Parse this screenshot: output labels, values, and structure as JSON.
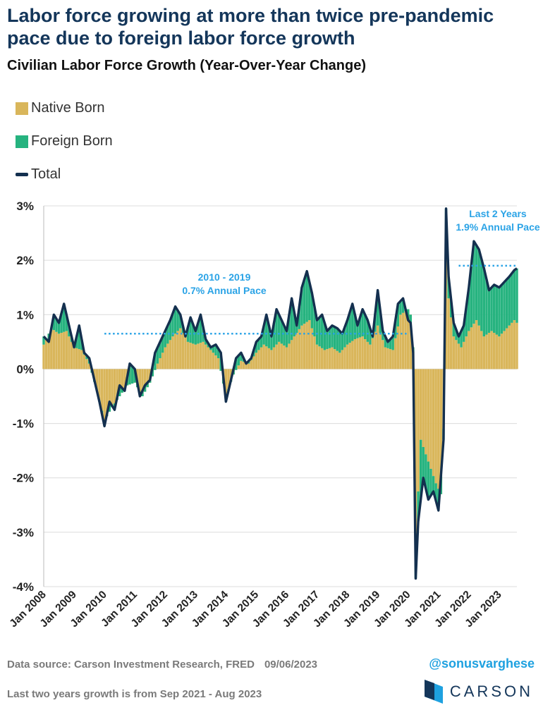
{
  "header": {
    "title": "Labor force growing at more than twice pre-pandemic pace due to foreign labor force growth",
    "subtitle": "Civilian Labor Force Growth (Year-Over-Year Change)"
  },
  "colors": {
    "native": "#d9b65b",
    "foreign": "#26b37f",
    "total": "#14304f",
    "reference": "#2aa3e6",
    "grid": "#dcdcdc"
  },
  "chart_data": {
    "type": "bar",
    "x_range": [
      "Jan 2008",
      "Aug 2023"
    ],
    "ylim": [
      -4,
      3
    ],
    "yticks": [
      "3%",
      "2%",
      "1%",
      "0%",
      "-1%",
      "-2%",
      "-3%",
      "-4%"
    ],
    "ytick_values": [
      3,
      2,
      1,
      0,
      -1,
      -2,
      -3,
      -4
    ],
    "xticks": [
      "Jan 2008",
      "Jan 2009",
      "Jan 2010",
      "Jan 2011",
      "Jan 2012",
      "Jan 2013",
      "Jan 2014",
      "Jan 2015",
      "Jan 2016",
      "Jan 2017",
      "Jan 2018",
      "Jan 2019",
      "Jan 2020",
      "Jan 2021",
      "Jan 2022",
      "Jan 2023"
    ],
    "legend": [
      "Native Born",
      "Foreign Born",
      "Total"
    ],
    "series": [
      {
        "name": "Total",
        "knots": [
          [
            "2008-01",
            0.6
          ],
          [
            "2008-03",
            0.5
          ],
          [
            "2008-05",
            1.0
          ],
          [
            "2008-07",
            0.85
          ],
          [
            "2008-09",
            1.2
          ],
          [
            "2008-11",
            0.8
          ],
          [
            "2009-01",
            0.4
          ],
          [
            "2009-03",
            0.8
          ],
          [
            "2009-05",
            0.3
          ],
          [
            "2009-07",
            0.2
          ],
          [
            "2009-09",
            -0.2
          ],
          [
            "2009-11",
            -0.6
          ],
          [
            "2010-01",
            -1.05
          ],
          [
            "2010-03",
            -0.6
          ],
          [
            "2010-05",
            -0.75
          ],
          [
            "2010-07",
            -0.3
          ],
          [
            "2010-09",
            -0.4
          ],
          [
            "2010-11",
            0.1
          ],
          [
            "2011-01",
            0.0
          ],
          [
            "2011-03",
            -0.5
          ],
          [
            "2011-05",
            -0.3
          ],
          [
            "2011-07",
            -0.2
          ],
          [
            "2011-09",
            0.3
          ],
          [
            "2011-11",
            0.5
          ],
          [
            "2012-01",
            0.7
          ],
          [
            "2012-03",
            0.9
          ],
          [
            "2012-05",
            1.15
          ],
          [
            "2012-07",
            1.0
          ],
          [
            "2012-09",
            0.6
          ],
          [
            "2012-11",
            0.95
          ],
          [
            "2013-01",
            0.7
          ],
          [
            "2013-03",
            1.0
          ],
          [
            "2013-05",
            0.55
          ],
          [
            "2013-07",
            0.4
          ],
          [
            "2013-09",
            0.45
          ],
          [
            "2013-11",
            0.3
          ],
          [
            "2014-01",
            -0.6
          ],
          [
            "2014-03",
            -0.2
          ],
          [
            "2014-05",
            0.2
          ],
          [
            "2014-07",
            0.3
          ],
          [
            "2014-09",
            0.1
          ],
          [
            "2014-11",
            0.2
          ],
          [
            "2015-01",
            0.5
          ],
          [
            "2015-03",
            0.6
          ],
          [
            "2015-05",
            1.0
          ],
          [
            "2015-07",
            0.6
          ],
          [
            "2015-09",
            1.1
          ],
          [
            "2015-11",
            0.9
          ],
          [
            "2016-01",
            0.7
          ],
          [
            "2016-03",
            1.3
          ],
          [
            "2016-05",
            0.8
          ],
          [
            "2016-07",
            1.5
          ],
          [
            "2016-09",
            1.8
          ],
          [
            "2016-11",
            1.4
          ],
          [
            "2017-01",
            0.9
          ],
          [
            "2017-03",
            1.0
          ],
          [
            "2017-05",
            0.7
          ],
          [
            "2017-07",
            0.8
          ],
          [
            "2017-09",
            0.75
          ],
          [
            "2017-11",
            0.65
          ],
          [
            "2018-01",
            0.9
          ],
          [
            "2018-03",
            1.2
          ],
          [
            "2018-05",
            0.8
          ],
          [
            "2018-07",
            1.1
          ],
          [
            "2018-09",
            0.9
          ],
          [
            "2018-11",
            0.6
          ],
          [
            "2019-01",
            1.45
          ],
          [
            "2019-03",
            0.7
          ],
          [
            "2019-05",
            0.5
          ],
          [
            "2019-07",
            0.6
          ],
          [
            "2019-09",
            1.2
          ],
          [
            "2019-11",
            1.3
          ],
          [
            "2020-01",
            0.9
          ],
          [
            "2020-02",
            0.85
          ],
          [
            "2020-03",
            0.3
          ],
          [
            "2020-04",
            -3.85
          ],
          [
            "2020-05",
            -2.8
          ],
          [
            "2020-07",
            -2.0
          ],
          [
            "2020-09",
            -2.4
          ],
          [
            "2020-11",
            -2.25
          ],
          [
            "2021-01",
            -2.6
          ],
          [
            "2021-03",
            -1.3
          ],
          [
            "2021-04",
            2.95
          ],
          [
            "2021-05",
            1.7
          ],
          [
            "2021-07",
            0.85
          ],
          [
            "2021-09",
            0.6
          ],
          [
            "2021-11",
            0.8
          ],
          [
            "2022-01",
            1.5
          ],
          [
            "2022-03",
            2.35
          ],
          [
            "2022-05",
            2.2
          ],
          [
            "2022-07",
            1.85
          ],
          [
            "2022-09",
            1.45
          ],
          [
            "2022-11",
            1.55
          ],
          [
            "2023-01",
            1.5
          ],
          [
            "2023-03",
            1.6
          ],
          [
            "2023-05",
            1.7
          ],
          [
            "2023-07",
            1.82
          ],
          [
            "2023-08",
            1.85
          ]
        ]
      },
      {
        "name": "Native Born",
        "knots": [
          [
            "2008-01",
            0.45
          ],
          [
            "2008-04",
            0.75
          ],
          [
            "2008-07",
            0.65
          ],
          [
            "2008-10",
            0.7
          ],
          [
            "2009-01",
            0.4
          ],
          [
            "2009-04",
            0.35
          ],
          [
            "2009-07",
            0.1
          ],
          [
            "2009-10",
            -0.4
          ],
          [
            "2010-01",
            -0.95
          ],
          [
            "2010-04",
            -0.7
          ],
          [
            "2010-07",
            -0.5
          ],
          [
            "2010-10",
            -0.3
          ],
          [
            "2011-01",
            -0.25
          ],
          [
            "2011-04",
            -0.5
          ],
          [
            "2011-07",
            -0.25
          ],
          [
            "2011-10",
            0.1
          ],
          [
            "2012-01",
            0.4
          ],
          [
            "2012-04",
            0.6
          ],
          [
            "2012-07",
            0.75
          ],
          [
            "2012-10",
            0.5
          ],
          [
            "2013-01",
            0.45
          ],
          [
            "2013-04",
            0.5
          ],
          [
            "2013-07",
            0.35
          ],
          [
            "2013-10",
            0.2
          ],
          [
            "2014-01",
            -0.5
          ],
          [
            "2014-04",
            -0.1
          ],
          [
            "2014-07",
            0.15
          ],
          [
            "2014-10",
            0.1
          ],
          [
            "2015-01",
            0.3
          ],
          [
            "2015-04",
            0.45
          ],
          [
            "2015-07",
            0.35
          ],
          [
            "2015-10",
            0.5
          ],
          [
            "2016-01",
            0.4
          ],
          [
            "2016-04",
            0.6
          ],
          [
            "2016-07",
            0.8
          ],
          [
            "2016-10",
            0.9
          ],
          [
            "2017-01",
            0.45
          ],
          [
            "2017-04",
            0.35
          ],
          [
            "2017-07",
            0.4
          ],
          [
            "2017-10",
            0.3
          ],
          [
            "2018-01",
            0.45
          ],
          [
            "2018-04",
            0.55
          ],
          [
            "2018-07",
            0.6
          ],
          [
            "2018-10",
            0.45
          ],
          [
            "2019-01",
            0.8
          ],
          [
            "2019-04",
            0.4
          ],
          [
            "2019-07",
            0.35
          ],
          [
            "2019-10",
            1.0
          ],
          [
            "2020-01",
            1.1
          ],
          [
            "2020-02",
            1.0
          ],
          [
            "2020-03",
            0.4
          ],
          [
            "2020-04",
            -3.2
          ],
          [
            "2020-06",
            -1.3
          ],
          [
            "2020-09",
            -1.7
          ],
          [
            "2020-12",
            -2.1
          ],
          [
            "2021-02",
            -2.3
          ],
          [
            "2021-03",
            -1.1
          ],
          [
            "2021-04",
            2.3
          ],
          [
            "2021-05",
            1.3
          ],
          [
            "2021-07",
            0.6
          ],
          [
            "2021-10",
            0.4
          ],
          [
            "2022-01",
            0.7
          ],
          [
            "2022-04",
            0.9
          ],
          [
            "2022-07",
            0.6
          ],
          [
            "2022-10",
            0.7
          ],
          [
            "2023-01",
            0.6
          ],
          [
            "2023-04",
            0.75
          ],
          [
            "2023-07",
            0.9
          ],
          [
            "2023-08",
            0.85
          ]
        ]
      },
      {
        "name": "Foreign Born",
        "note": "difference between Total and Native Born"
      }
    ],
    "annotations": [
      {
        "text": "2010 - 2019",
        "text2": "0.7% Annual Pace",
        "line_value": 0.65,
        "x_from": "2010-01",
        "x_to": "2020-01"
      },
      {
        "text": "Last 2 Years",
        "text2": "1.9% Annual Pace",
        "line_value": 1.9,
        "x_from": "2021-09",
        "x_to": "2023-08"
      }
    ]
  },
  "footer": {
    "source": "Data source: Carson Investment Research, FRED",
    "date": "09/06/2023",
    "note": "Last two years growth is from Sep 2021 - Aug 2023",
    "handle": "@sonusvarghese",
    "brand": "CARSON"
  }
}
